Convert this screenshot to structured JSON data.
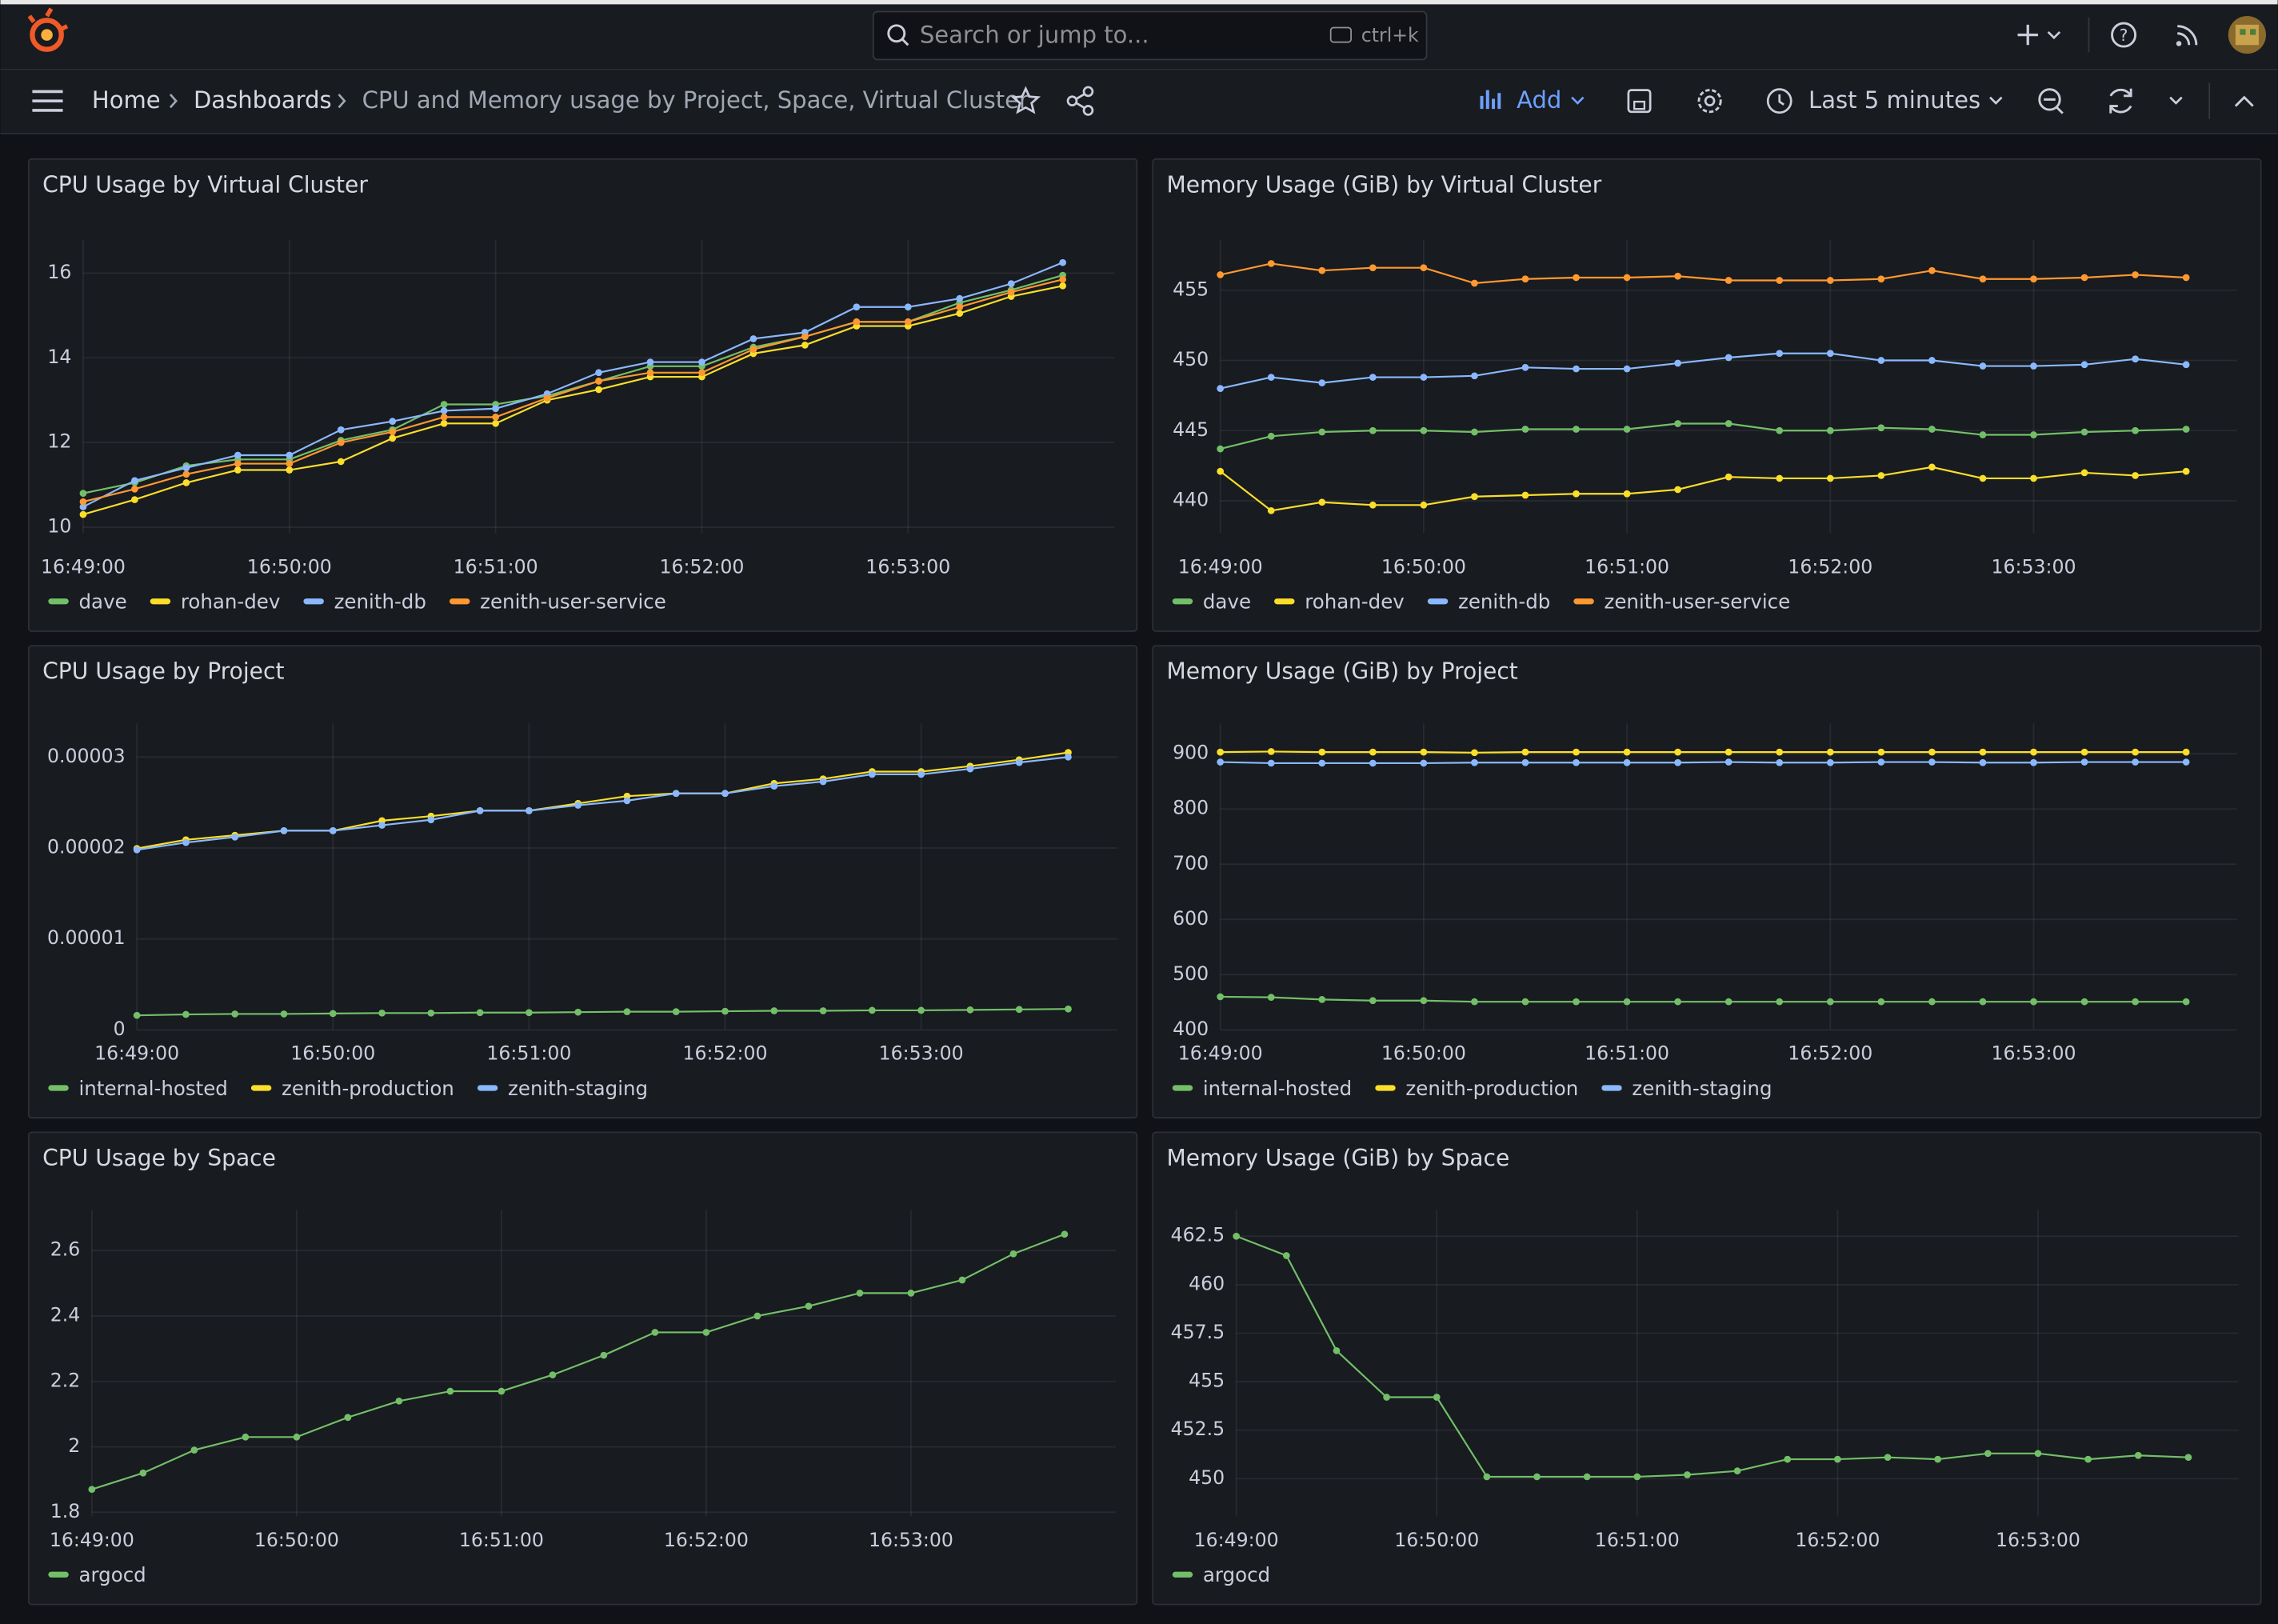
{
  "header": {
    "search_placeholder": "Search or jump to...",
    "search_shortcut": "ctrl+k",
    "breadcrumbs": [
      "Home",
      "Dashboards",
      "CPU and Memory usage by Project, Space, Virtual Cluster"
    ],
    "add_button": "Add",
    "time_range": "Last 5 minutes"
  },
  "chart_data": [
    {
      "type": "line",
      "title": "CPU Usage by Virtual Cluster",
      "x": [
        "16:49:00",
        "16:49:15",
        "16:49:30",
        "16:49:45",
        "16:50:00",
        "16:50:15",
        "16:50:30",
        "16:50:45",
        "16:51:00",
        "16:51:15",
        "16:51:30",
        "16:51:45",
        "16:52:00",
        "16:52:15",
        "16:52:30",
        "16:52:45",
        "16:53:00",
        "16:53:15",
        "16:53:30",
        "16:53:45"
      ],
      "xlim": [
        "16:49:00",
        "16:54:00"
      ],
      "xticks": [
        "16:49:00",
        "16:50:00",
        "16:51:00",
        "16:52:00",
        "16:53:00"
      ],
      "ylim": [
        9.86,
        16.79
      ],
      "yticks": [
        10,
        12,
        14,
        16
      ],
      "grid": true,
      "series": [
        {
          "name": "dave",
          "color": "#73bf69",
          "values": [
            10.8,
            11.05,
            11.45,
            11.6,
            11.6,
            12.05,
            12.3,
            12.9,
            12.9,
            13.1,
            13.45,
            13.8,
            13.8,
            14.25,
            14.5,
            14.85,
            14.85,
            15.3,
            15.6,
            15.95
          ]
        },
        {
          "name": "rohan-dev",
          "color": "#fade2a",
          "values": [
            10.3,
            10.65,
            11.05,
            11.35,
            11.35,
            11.55,
            12.1,
            12.45,
            12.45,
            13.0,
            13.25,
            13.55,
            13.55,
            14.1,
            14.3,
            14.75,
            14.75,
            15.05,
            15.45,
            15.7
          ]
        },
        {
          "name": "zenith-db",
          "color": "#8ab8ff",
          "values": [
            10.48,
            11.1,
            11.4,
            11.7,
            11.7,
            12.3,
            12.5,
            12.75,
            12.8,
            13.15,
            13.65,
            13.9,
            13.9,
            14.45,
            14.6,
            15.2,
            15.2,
            15.4,
            15.75,
            16.25
          ]
        },
        {
          "name": "zenith-user-service",
          "color": "#ff9830",
          "values": [
            10.6,
            10.9,
            11.25,
            11.5,
            11.5,
            12.0,
            12.25,
            12.6,
            12.6,
            13.05,
            13.45,
            13.65,
            13.65,
            14.2,
            14.5,
            14.85,
            14.85,
            15.2,
            15.55,
            15.85
          ]
        }
      ]
    },
    {
      "type": "line",
      "title": "Memory Usage (GiB) by Virtual Cluster",
      "x": [
        "16:49:00",
        "16:49:15",
        "16:49:30",
        "16:49:45",
        "16:50:00",
        "16:50:15",
        "16:50:30",
        "16:50:45",
        "16:51:00",
        "16:51:15",
        "16:51:30",
        "16:51:45",
        "16:52:00",
        "16:52:15",
        "16:52:30",
        "16:52:45",
        "16:53:00",
        "16:53:15",
        "16:53:30",
        "16:53:45"
      ],
      "xlim": [
        "16:49:00",
        "16:54:00"
      ],
      "xticks": [
        "16:49:00",
        "16:50:00",
        "16:51:00",
        "16:52:00",
        "16:53:00"
      ],
      "ylim": [
        437.7,
        458.6
      ],
      "yticks": [
        440,
        445,
        450,
        455
      ],
      "grid": true,
      "series": [
        {
          "name": "dave",
          "color": "#73bf69",
          "values": [
            443.7,
            444.6,
            444.9,
            445.0,
            445.0,
            444.9,
            445.1,
            445.1,
            445.1,
            445.5,
            445.5,
            445.0,
            445.0,
            445.2,
            445.1,
            444.7,
            444.7,
            444.9,
            445.0,
            445.1
          ]
        },
        {
          "name": "rohan-dev",
          "color": "#fade2a",
          "values": [
            442.1,
            439.3,
            439.9,
            439.7,
            439.7,
            440.3,
            440.4,
            440.5,
            440.5,
            440.8,
            441.7,
            441.6,
            441.6,
            441.8,
            442.4,
            441.6,
            441.6,
            442.0,
            441.8,
            442.1
          ]
        },
        {
          "name": "zenith-db",
          "color": "#8ab8ff",
          "values": [
            448.0,
            448.8,
            448.4,
            448.8,
            448.8,
            448.9,
            449.5,
            449.4,
            449.4,
            449.8,
            450.2,
            450.5,
            450.5,
            450.0,
            450.0,
            449.6,
            449.6,
            449.7,
            450.1,
            449.7
          ]
        },
        {
          "name": "zenith-user-service",
          "color": "#ff9830",
          "values": [
            456.1,
            456.9,
            456.4,
            456.6,
            456.6,
            455.5,
            455.8,
            455.9,
            455.9,
            456.0,
            455.7,
            455.7,
            455.7,
            455.8,
            456.4,
            455.8,
            455.8,
            455.9,
            456.1,
            455.9
          ]
        }
      ]
    },
    {
      "type": "line",
      "title": "CPU Usage by Project",
      "x": [
        "16:49:00",
        "16:49:15",
        "16:49:30",
        "16:49:45",
        "16:50:00",
        "16:50:15",
        "16:50:30",
        "16:50:45",
        "16:51:00",
        "16:51:15",
        "16:51:30",
        "16:51:45",
        "16:52:00",
        "16:52:15",
        "16:52:30",
        "16:52:45",
        "16:53:00",
        "16:53:15",
        "16:53:30",
        "16:53:45"
      ],
      "xlim": [
        "16:49:00",
        "16:54:00"
      ],
      "xticks": [
        "16:49:00",
        "16:50:00",
        "16:51:00",
        "16:52:00",
        "16:53:00"
      ],
      "ylim": [
        0,
        3.37e-05
      ],
      "yticks": [
        0,
        1e-05,
        2e-05,
        3e-05
      ],
      "grid": true,
      "series": [
        {
          "name": "internal-hosted",
          "color": "#73bf69",
          "values": [
            1.6e-06,
            1.7e-06,
            1.75e-06,
            1.75e-06,
            1.8e-06,
            1.85e-06,
            1.85e-06,
            1.9e-06,
            1.9e-06,
            1.95e-06,
            2e-06,
            2e-06,
            2.05e-06,
            2.1e-06,
            2.1e-06,
            2.15e-06,
            2.15e-06,
            2.2e-06,
            2.25e-06,
            2.3e-06
          ]
        },
        {
          "name": "zenith-production",
          "color": "#fade2a",
          "values": [
            1.995e-05,
            2.09e-05,
            2.14e-05,
            2.19e-05,
            2.19e-05,
            2.3e-05,
            2.35e-05,
            2.41e-05,
            2.41e-05,
            2.49e-05,
            2.57e-05,
            2.6e-05,
            2.6e-05,
            2.71e-05,
            2.76e-05,
            2.84e-05,
            2.84e-05,
            2.9e-05,
            2.97e-05,
            3.05e-05
          ]
        },
        {
          "name": "zenith-staging",
          "color": "#8ab8ff",
          "values": [
            1.98e-05,
            2.06e-05,
            2.12e-05,
            2.19e-05,
            2.19e-05,
            2.25e-05,
            2.31e-05,
            2.41e-05,
            2.41e-05,
            2.47e-05,
            2.52e-05,
            2.6e-05,
            2.6e-05,
            2.68e-05,
            2.73e-05,
            2.81e-05,
            2.81e-05,
            2.87e-05,
            2.94e-05,
            3e-05
          ]
        }
      ]
    },
    {
      "type": "line",
      "title": "Memory Usage (GiB) by Project",
      "x": [
        "16:49:00",
        "16:49:15",
        "16:49:30",
        "16:49:45",
        "16:50:00",
        "16:50:15",
        "16:50:30",
        "16:50:45",
        "16:51:00",
        "16:51:15",
        "16:51:30",
        "16:51:45",
        "16:52:00",
        "16:52:15",
        "16:52:30",
        "16:52:45",
        "16:53:00",
        "16:53:15",
        "16:53:30",
        "16:53:45"
      ],
      "xlim": [
        "16:49:00",
        "16:54:00"
      ],
      "xticks": [
        "16:49:00",
        "16:50:00",
        "16:51:00",
        "16:52:00",
        "16:53:00"
      ],
      "ylim": [
        400,
        955
      ],
      "yticks": [
        400,
        500,
        600,
        700,
        800,
        900
      ],
      "grid": true,
      "series": [
        {
          "name": "internal-hosted",
          "color": "#73bf69",
          "values": [
            460,
            459,
            455,
            453,
            453,
            451,
            451,
            451,
            451,
            451,
            451,
            451,
            451,
            451,
            451,
            451,
            451,
            451,
            451,
            451
          ]
        },
        {
          "name": "zenith-production",
          "color": "#fade2a",
          "values": [
            903,
            904,
            903,
            903,
            903,
            902,
            903,
            903,
            903,
            903,
            903,
            903,
            903,
            903,
            903,
            903,
            903,
            903,
            903,
            903
          ]
        },
        {
          "name": "zenith-staging",
          "color": "#8ab8ff",
          "values": [
            885,
            883,
            883,
            883,
            883,
            884,
            884,
            884,
            884,
            884,
            885,
            884,
            884,
            885,
            885,
            884,
            884,
            885,
            885,
            885
          ]
        }
      ]
    },
    {
      "type": "line",
      "title": "CPU Usage by Space",
      "x": [
        "16:49:00",
        "16:49:15",
        "16:49:30",
        "16:49:45",
        "16:50:00",
        "16:50:15",
        "16:50:30",
        "16:50:45",
        "16:51:00",
        "16:51:15",
        "16:51:30",
        "16:51:45",
        "16:52:00",
        "16:52:15",
        "16:52:30",
        "16:52:45",
        "16:53:00",
        "16:53:15",
        "16:53:30",
        "16:53:45"
      ],
      "xlim": [
        "16:49:00",
        "16:54:00"
      ],
      "xticks": [
        "16:49:00",
        "16:50:00",
        "16:51:00",
        "16:52:00",
        "16:53:00"
      ],
      "ylim": [
        1.787,
        2.724
      ],
      "yticks": [
        1.8,
        2,
        2.2,
        2.4,
        2.6
      ],
      "grid": true,
      "series": [
        {
          "name": "argocd",
          "color": "#73bf69",
          "values": [
            1.87,
            1.92,
            1.99,
            2.03,
            2.03,
            2.09,
            2.14,
            2.17,
            2.17,
            2.22,
            2.28,
            2.35,
            2.35,
            2.4,
            2.43,
            2.47,
            2.47,
            2.51,
            2.59,
            2.65
          ]
        }
      ]
    },
    {
      "type": "line",
      "title": "Memory Usage (GiB) by Space",
      "x": [
        "16:49:00",
        "16:49:15",
        "16:49:30",
        "16:49:45",
        "16:50:00",
        "16:50:15",
        "16:50:30",
        "16:50:45",
        "16:51:00",
        "16:51:15",
        "16:51:30",
        "16:51:45",
        "16:52:00",
        "16:52:15",
        "16:52:30",
        "16:52:45",
        "16:53:00",
        "16:53:15",
        "16:53:30",
        "16:53:45"
      ],
      "xlim": [
        "16:49:00",
        "16:54:00"
      ],
      "xticks": [
        "16:49:00",
        "16:50:00",
        "16:51:00",
        "16:52:00",
        "16:53:00"
      ],
      "ylim": [
        448.05,
        463.85
      ],
      "yticks": [
        450,
        452.5,
        455,
        457.5,
        460,
        462.5
      ],
      "grid": true,
      "series": [
        {
          "name": "argocd",
          "color": "#73bf69",
          "values": [
            462.5,
            461.5,
            456.6,
            454.2,
            454.2,
            450.1,
            450.1,
            450.1,
            450.1,
            450.2,
            450.4,
            451.0,
            451.0,
            451.1,
            451.0,
            451.3,
            451.3,
            451.0,
            451.2,
            451.1
          ]
        }
      ]
    }
  ]
}
